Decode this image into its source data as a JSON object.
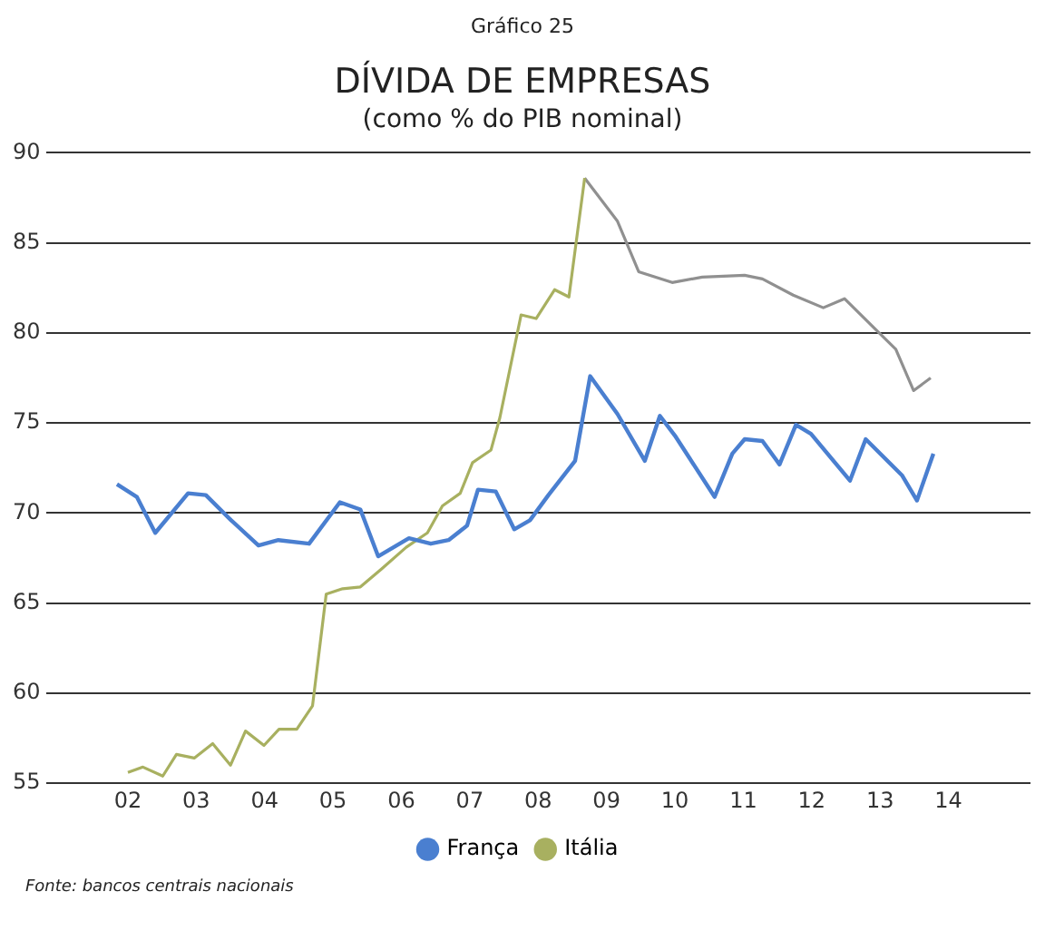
{
  "chart_data": {
    "type": "line",
    "title": "DÍVIDA DE EMPRESAS",
    "subtitle": "(como % do PIB nominal)",
    "annotations": [
      "Gráfico 25",
      "Fonte: bancos centrais nacionais"
    ],
    "xlim": [
      2000.8,
      2015.2
    ],
    "xticks": [
      {
        "value": 2002,
        "label": "02"
      },
      {
        "value": 2003,
        "label": "03"
      },
      {
        "value": 2004,
        "label": "04"
      },
      {
        "value": 2005,
        "label": "05"
      },
      {
        "value": 2006,
        "label": "06"
      },
      {
        "value": 2007,
        "label": "07"
      },
      {
        "value": 2008,
        "label": "08"
      },
      {
        "value": 2009,
        "label": "09"
      },
      {
        "value": 2010,
        "label": "10"
      },
      {
        "value": 2011,
        "label": "11"
      },
      {
        "value": 2012,
        "label": "12"
      },
      {
        "value": 2013,
        "label": "13"
      },
      {
        "value": 2014,
        "label": "14"
      }
    ],
    "ylim": [
      55,
      90
    ],
    "yticks": [
      55,
      60,
      65,
      70,
      75,
      80,
      85,
      90
    ],
    "grid": "y",
    "legend": "bottom",
    "marker": "none",
    "line_style": "solid",
    "series": [
      {
        "name": "França",
        "color": "#4a7fd0",
        "x": [
          2001.84,
          2002.13,
          2002.4,
          2002.88,
          2003.14,
          2003.51,
          2003.91,
          2004.2,
          2004.65,
          2005.1,
          2005.4,
          2005.66,
          2006.11,
          2006.43,
          2006.69,
          2006.96,
          2007.12,
          2007.38,
          2007.65,
          2007.88,
          2008.15,
          2008.54,
          2008.76,
          2009.16,
          2009.56,
          2009.78,
          2010.0,
          2010.58,
          2010.84,
          2011.02,
          2011.28,
          2011.53,
          2011.77,
          2011.99,
          2012.56,
          2012.79,
          2013.32,
          2013.54,
          2013.78
        ],
        "values": [
          71.6,
          70.9,
          68.9,
          71.1,
          71.0,
          69.6,
          68.2,
          68.5,
          68.3,
          70.6,
          70.2,
          67.6,
          68.6,
          68.3,
          68.5,
          69.3,
          71.3,
          71.2,
          69.1,
          69.6,
          71.0,
          72.9,
          77.6,
          75.5,
          72.9,
          75.4,
          74.3,
          70.9,
          73.3,
          74.1,
          74.0,
          72.7,
          74.9,
          74.4,
          71.8,
          74.1,
          72.1,
          70.7,
          73.3
        ]
      },
      {
        "name": "Itália",
        "color": "#a8b060",
        "x": [
          2002.0,
          2002.22,
          2002.51,
          2002.71,
          2002.97,
          2003.24,
          2003.5,
          2003.72,
          2003.99,
          2004.21,
          2004.47,
          2004.7,
          2004.9,
          2005.14,
          2005.4,
          2005.71,
          2006.07,
          2006.38,
          2006.6,
          2006.86,
          2007.04,
          2007.31,
          2007.44,
          2007.75,
          2007.97,
          2008.24,
          2008.45,
          2008.68
        ],
        "values": [
          55.6,
          55.9,
          55.4,
          56.6,
          56.4,
          57.2,
          56.0,
          57.9,
          57.1,
          58.0,
          58.0,
          59.3,
          65.5,
          65.8,
          65.9,
          66.9,
          68.1,
          68.9,
          70.4,
          71.1,
          72.8,
          73.5,
          75.3,
          81.0,
          80.8,
          82.4,
          82.0,
          88.6
        ]
      },
      {
        "color": "#909090",
        "x": [
          2008.68,
          2009.16,
          2009.47,
          2009.96,
          2010.4,
          2011.02,
          2011.28,
          2011.73,
          2012.17,
          2012.48,
          2012.96,
          2013.23,
          2013.49,
          2013.74
        ],
        "values": [
          88.6,
          86.2,
          83.4,
          82.8,
          83.1,
          83.2,
          83.0,
          82.1,
          81.4,
          81.9,
          80.1,
          79.1,
          76.8,
          77.5
        ]
      }
    ]
  }
}
